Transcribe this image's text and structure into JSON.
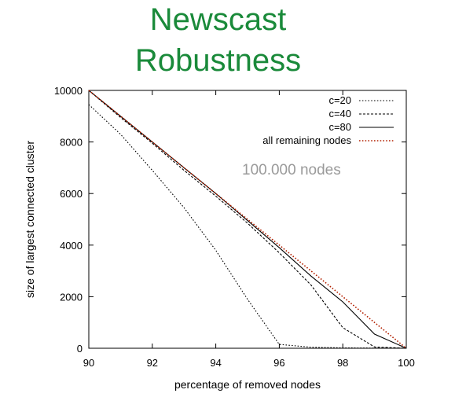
{
  "title_line1": "Newscast",
  "title_line2": "Robustness",
  "colors": {
    "title": "#1a8a3a",
    "red_series": "#b22000",
    "black_series": "#000000",
    "annotation": "#9a9a9a"
  },
  "chart_data": {
    "type": "line",
    "xlabel": "percentage of removed nodes",
    "ylabel": "size of largest connected cluster",
    "xlim": [
      90,
      100
    ],
    "ylim": [
      0,
      10000
    ],
    "x_ticks": [
      90,
      92,
      94,
      96,
      98,
      100
    ],
    "y_ticks": [
      0,
      2000,
      4000,
      6000,
      8000,
      10000
    ],
    "grid": false,
    "legend_position": "top-right",
    "annotation": "100.000 nodes",
    "series": [
      {
        "name": "c=20",
        "style": "dotted",
        "color": "#000000",
        "x": [
          90,
          91,
          92,
          93,
          94,
          95,
          96,
          97,
          98,
          99,
          100
        ],
        "y": [
          9450,
          8300,
          6900,
          5450,
          3800,
          1900,
          150,
          40,
          15,
          5,
          0
        ]
      },
      {
        "name": "c=40",
        "style": "dashed",
        "color": "#000000",
        "x": [
          90,
          91,
          92,
          93,
          94,
          95,
          96,
          97,
          98,
          99,
          100
        ],
        "y": [
          10000,
          8950,
          7950,
          6900,
          5900,
          4850,
          3700,
          2450,
          800,
          50,
          0
        ]
      },
      {
        "name": "c=80",
        "style": "solid",
        "color": "#000000",
        "x": [
          90,
          91,
          92,
          93,
          94,
          95,
          96,
          97,
          98,
          99,
          100
        ],
        "y": [
          10000,
          9000,
          8000,
          7000,
          6000,
          4950,
          3900,
          2800,
          1800,
          550,
          0
        ]
      },
      {
        "name": "all remaining nodes",
        "style": "dotted",
        "color": "#b22000",
        "x": [
          90,
          100
        ],
        "y": [
          10000,
          0
        ]
      }
    ]
  }
}
